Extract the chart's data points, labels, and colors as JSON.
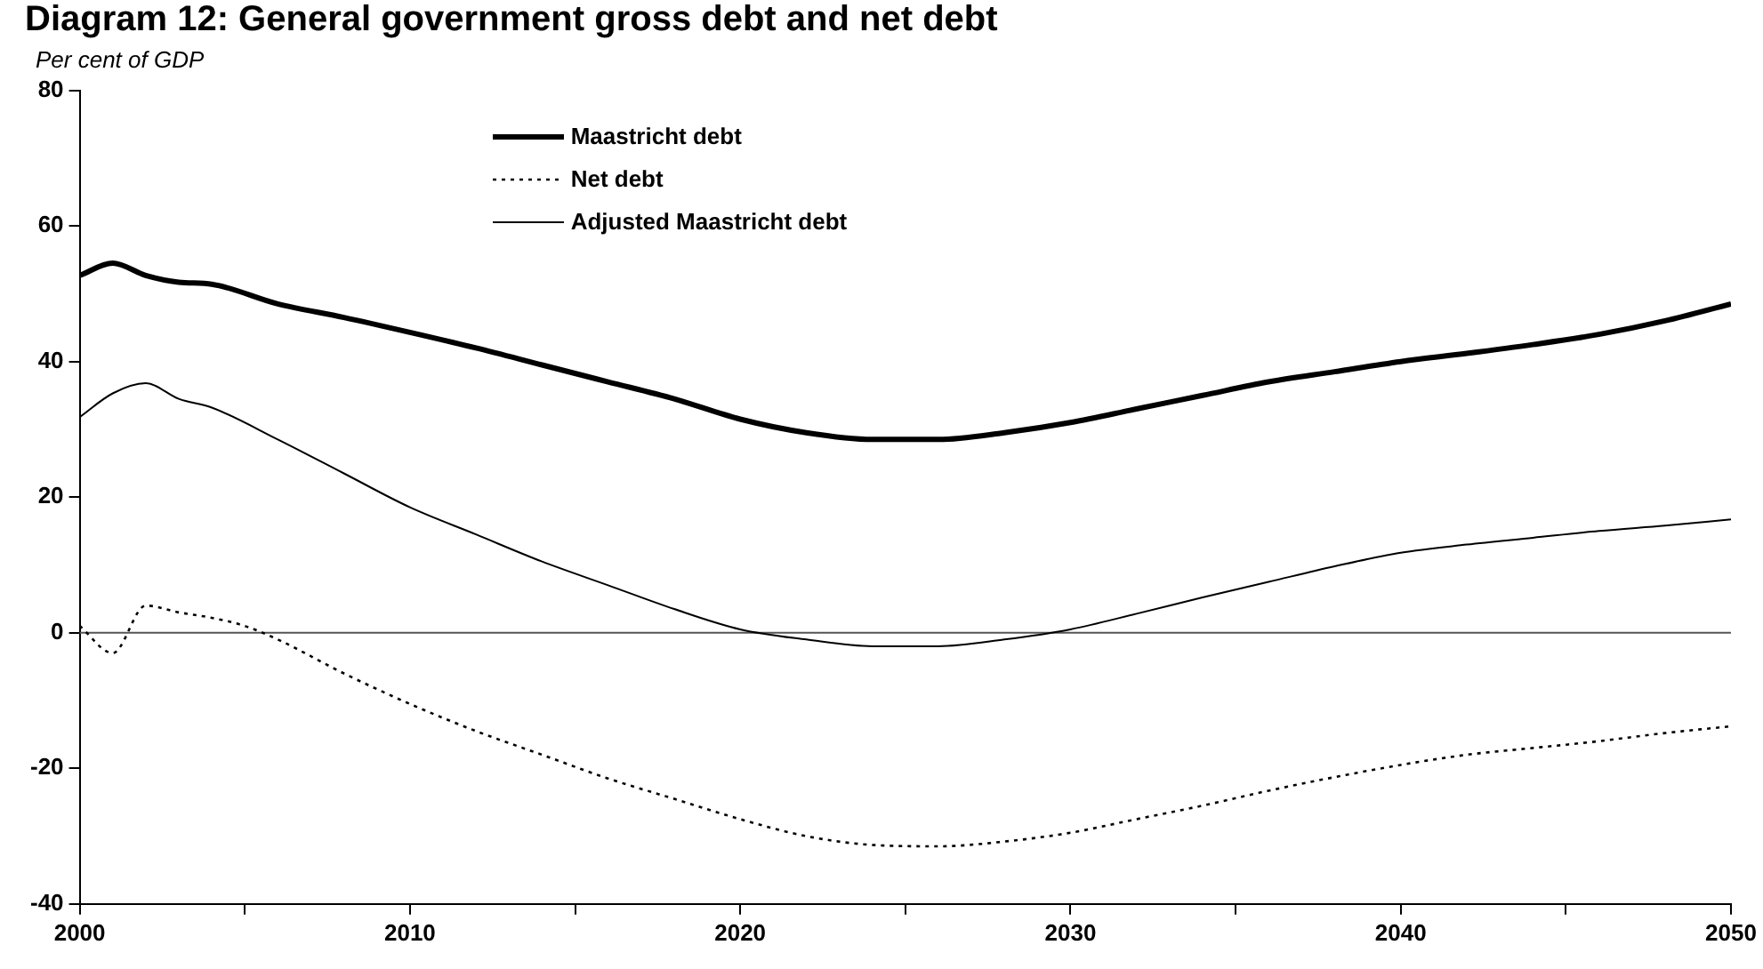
{
  "chart_data": {
    "type": "line",
    "title": "Diagram 12: General government gross debt and net debt",
    "ylabel": "Per cent of GDP",
    "xlim": [
      2000,
      2050
    ],
    "xticks": [
      2000,
      {
        "value": 2005,
        "label": null
      },
      2010,
      {
        "value": 2015,
        "label": null
      },
      2020,
      {
        "value": 2025,
        "label": null
      },
      2030,
      {
        "value": 2035,
        "label": null
      },
      2040,
      {
        "value": 2045,
        "label": null
      },
      2050
    ],
    "ylim": [
      -40,
      80
    ],
    "yticks": [
      -40,
      -20,
      0,
      20,
      40,
      60,
      80
    ],
    "grid": false,
    "legend": "top",
    "marker": "none",
    "ref_lines": [
      {
        "axis": "y",
        "value": 0,
        "color": "#555555"
      }
    ],
    "series": [
      {
        "name": "Maastricht debt",
        "color": "#000000",
        "line_style": "solid",
        "x": [
          2000,
          2001,
          2002,
          2003,
          2004,
          2006,
          2008,
          2010,
          2012,
          2014,
          2016,
          2018,
          2020,
          2022,
          2024,
          2026,
          2028,
          2030,
          2032,
          2034,
          2036,
          2038,
          2040,
          2042,
          2044,
          2046,
          2048,
          2050
        ],
        "values": [
          52.7,
          54.5,
          52.7,
          51.7,
          51.4,
          48.5,
          46.5,
          44.3,
          42,
          39.5,
          37,
          34.5,
          31.5,
          29.5,
          28.5,
          28.5,
          29.5,
          31,
          33,
          35,
          37,
          38.5,
          40,
          41.2,
          42.5,
          44,
          46,
          48.5
        ]
      },
      {
        "name": "Net debt",
        "color": "#000000",
        "line_style": "dotted",
        "x": [
          2000,
          2001,
          2002,
          2003,
          2004,
          2005,
          2006,
          2008,
          2010,
          2012,
          2014,
          2016,
          2018,
          2020,
          2022,
          2024,
          2026,
          2028,
          2030,
          2032,
          2034,
          2036,
          2038,
          2040,
          2042,
          2044,
          2046,
          2048,
          2050
        ],
        "values": [
          1,
          -3,
          4,
          3,
          2.2,
          1,
          -1,
          -6,
          -10.5,
          -14.5,
          -18,
          -21.5,
          -24.5,
          -27.5,
          -30,
          -31.3,
          -31.5,
          -30.8,
          -29.5,
          -27.5,
          -25.5,
          -23.3,
          -21.3,
          -19.5,
          -18,
          -17,
          -16,
          -14.8,
          -13.8
        ]
      },
      {
        "name": "Adjusted Maastricht debt",
        "color": "#000000",
        "line_style": "solid",
        "x": [
          2000,
          2001,
          2002,
          2003,
          2004,
          2006,
          2008,
          2010,
          2012,
          2014,
          2016,
          2018,
          2020,
          2022,
          2024,
          2026,
          2028,
          2030,
          2032,
          2034,
          2036,
          2038,
          2040,
          2042,
          2044,
          2046,
          2048,
          2050
        ],
        "values": [
          31.8,
          35.3,
          36.8,
          34.5,
          33.2,
          28.5,
          23.5,
          18.5,
          14.5,
          10.5,
          7,
          3.5,
          0.5,
          -1,
          -2,
          -2,
          -1,
          0.5,
          2.8,
          5.2,
          7.5,
          9.8,
          11.8,
          13,
          14,
          15,
          15.8,
          16.7
        ]
      }
    ]
  }
}
